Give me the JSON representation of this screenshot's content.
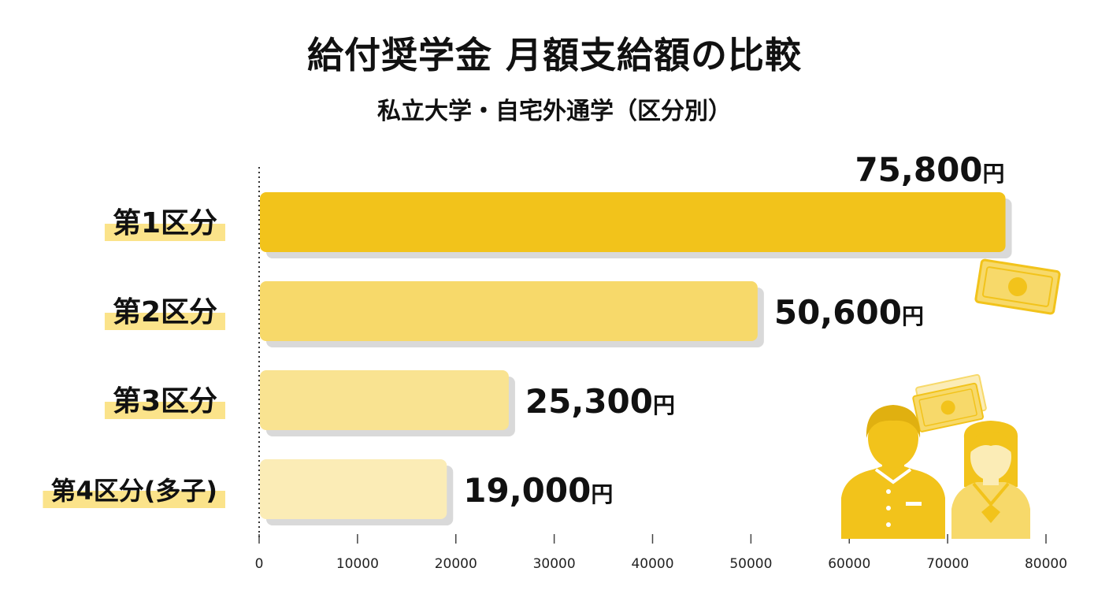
{
  "title": "給付奨学金 月額支給額の比較",
  "subtitle": "私立大学・自宅外通学（区分別）",
  "colors": {
    "bars": [
      "#f2c31b",
      "#f7d96a",
      "#f9e391",
      "#fbecb6"
    ],
    "highlight": "#fbe38a",
    "shadow": "#d9d9d9",
    "illustration": "#f2c31b",
    "illustration_light": "#f7d96a"
  },
  "chart_data": {
    "type": "bar",
    "orientation": "horizontal",
    "categories": [
      "第1区分",
      "第2区分",
      "第3区分",
      "第4区分(多子)"
    ],
    "values": [
      75800,
      50600,
      25300,
      19000
    ],
    "value_labels": [
      "75,800",
      "50,600",
      "25,300",
      "19,000"
    ],
    "unit": "円",
    "xlim": [
      0,
      80000
    ],
    "xticks": [
      0,
      10000,
      20000,
      30000,
      40000,
      50000,
      60000,
      70000,
      80000
    ],
    "xtick_labels": [
      "0",
      "10000",
      "20000",
      "30000",
      "40000",
      "50000",
      "60000",
      "70000",
      "80000"
    ],
    "grid": false,
    "legend": "none"
  },
  "illustration": {
    "icons": [
      "money-bill-icon",
      "money-stack-icon",
      "male-student-icon",
      "female-student-icon"
    ]
  }
}
